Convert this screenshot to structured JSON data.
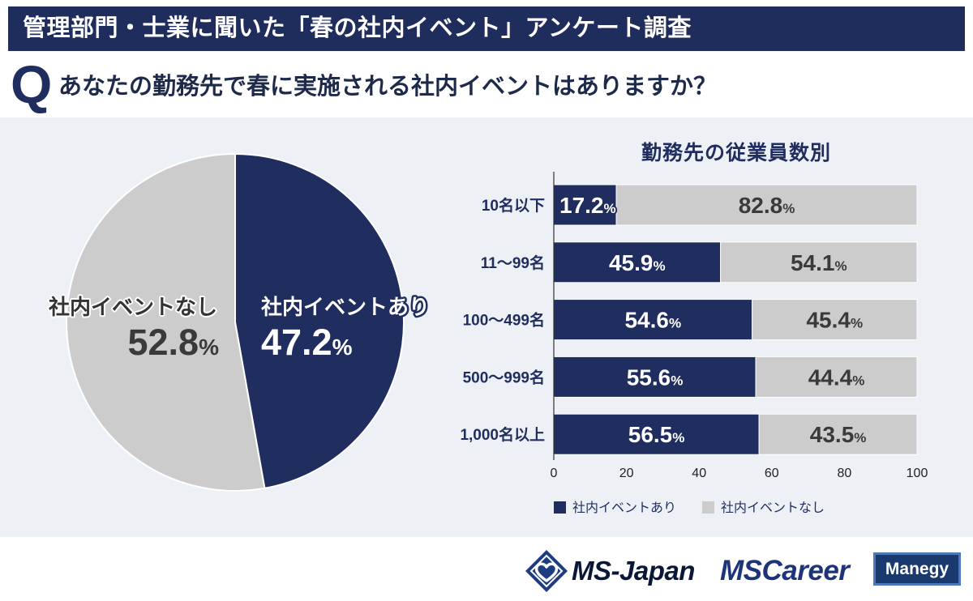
{
  "header": {
    "title": "管理部門・士業に聞いた「春の社内イベント」アンケート調査"
  },
  "question": {
    "marker": "Q",
    "text": "あなたの勤務先で春に実施される社内イベントはありますか？"
  },
  "colors": {
    "navy": "#1f2d5f",
    "grey": "#cccccc",
    "panel_bg": "#edf0f5",
    "header_bg": "#1f2d5c"
  },
  "chart_data": [
    {
      "type": "pie",
      "value_suffix": "%",
      "slices": [
        {
          "label": "社内イベントあり",
          "value": 47.2,
          "color": "#1f2d5f"
        },
        {
          "label": "社内イベントなし",
          "value": 52.8,
          "color": "#cccccc"
        }
      ]
    },
    {
      "type": "bar",
      "horizontal": true,
      "stacked": true,
      "title": "勤務先の従業員数別",
      "categories": [
        "10名以下",
        "11〜99名",
        "100〜499名",
        "500〜999名",
        "1,000名以上"
      ],
      "series": [
        {
          "name": "社内イベントあり",
          "color": "#1f2d5f",
          "values": [
            17.2,
            45.9,
            54.6,
            55.6,
            56.5
          ]
        },
        {
          "name": "社内イベントなし",
          "color": "#cccccc",
          "values": [
            82.8,
            54.1,
            45.4,
            44.4,
            43.5
          ]
        }
      ],
      "xlim": [
        0,
        100
      ],
      "xticks": [
        0,
        20,
        40,
        60,
        80,
        100
      ],
      "value_suffix": "%"
    }
  ],
  "footer": {
    "logos": {
      "ms_japan": "MS-Japan",
      "ms_career": "MSCareer",
      "manegy": "Manegy"
    }
  }
}
